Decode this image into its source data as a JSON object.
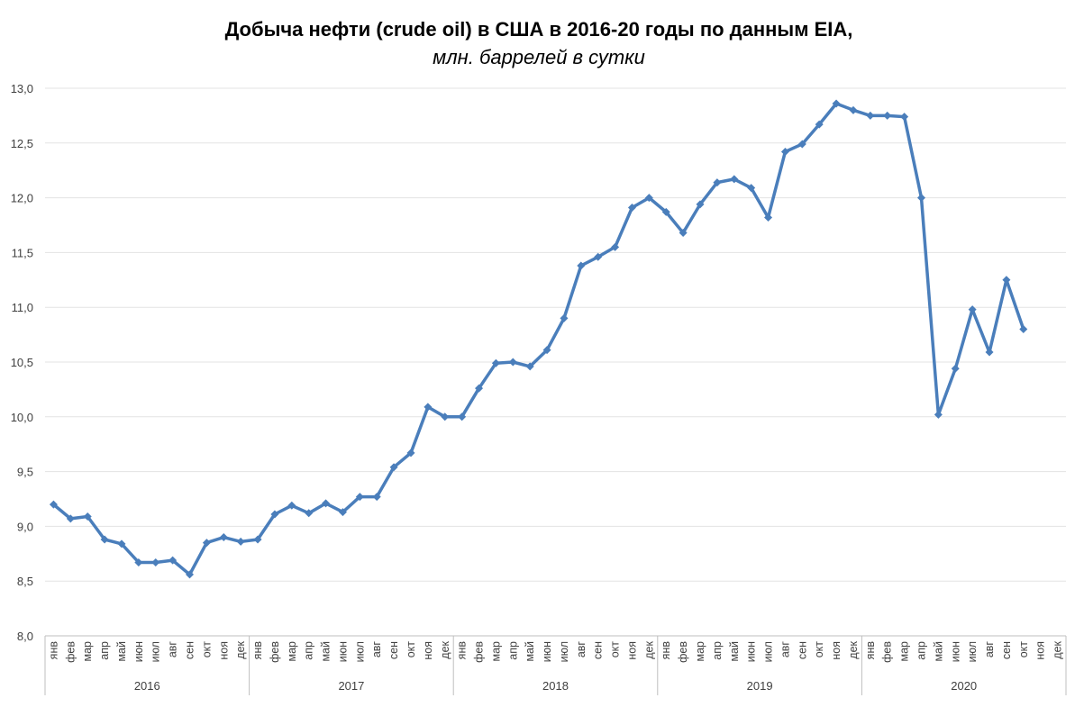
{
  "chart_data": {
    "type": "line",
    "title": "Добыча нефти (crude oil) в США в 2016-20 годы по данным EIA,",
    "subtitle": "млн. баррелей в сутки",
    "xlabel": "",
    "ylabel": "",
    "ylim": [
      8.0,
      13.0
    ],
    "yticks": [
      "8,0",
      "8,5",
      "9,0",
      "9,5",
      "10,0",
      "10,5",
      "11,0",
      "11,5",
      "12,0",
      "12,5",
      "13,0"
    ],
    "grid": true,
    "legend": "none",
    "color": "#4a7ebb",
    "months": [
      "янв",
      "фев",
      "мар",
      "апр",
      "май",
      "июн",
      "июл",
      "авг",
      "сен",
      "окт",
      "ноя",
      "дек"
    ],
    "years": [
      "2016",
      "2017",
      "2018",
      "2019",
      "2020"
    ],
    "series": [
      {
        "name": "Добыча нефти",
        "values": [
          9.2,
          9.07,
          9.09,
          8.88,
          8.84,
          8.67,
          8.67,
          8.69,
          8.56,
          8.85,
          8.9,
          8.86,
          8.88,
          9.11,
          9.19,
          9.12,
          9.21,
          9.13,
          9.27,
          9.27,
          9.54,
          9.67,
          10.09,
          10.0,
          10.0,
          10.26,
          10.49,
          10.5,
          10.46,
          10.61,
          10.9,
          11.38,
          11.46,
          11.55,
          11.91,
          12.0,
          11.87,
          11.68,
          11.94,
          12.14,
          12.17,
          12.09,
          11.82,
          12.42,
          12.49,
          12.67,
          12.86,
          12.8,
          12.75,
          12.75,
          12.74,
          12.0,
          10.02,
          10.44,
          10.98,
          10.59,
          11.25,
          10.8
        ]
      }
    ]
  }
}
